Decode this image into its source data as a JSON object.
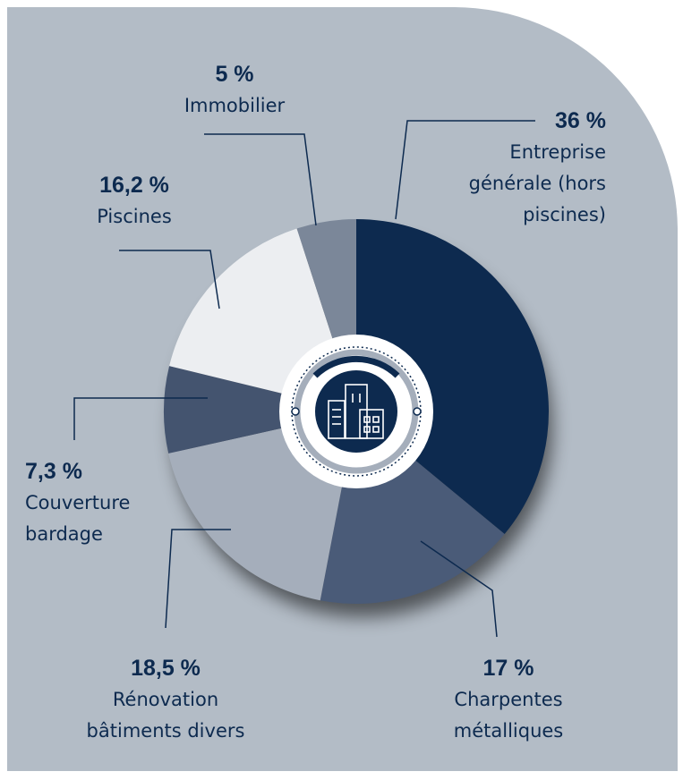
{
  "chart_data": {
    "type": "pie",
    "categories": [
      "Entreprise générale (hors piscines)",
      "Charpentes métalliques",
      "Rénovation bâtiments divers",
      "Couverture bardage",
      "Piscines",
      "Immobilier"
    ],
    "values": [
      36,
      17,
      18.5,
      7.3,
      16.2,
      5
    ],
    "value_labels": [
      "36 %",
      "17 %",
      "18,5 %",
      "7,3 %",
      "16,2 %",
      "5 %"
    ],
    "colors": [
      "#0d2a4f",
      "#4a5b78",
      "#a5aebb",
      "#44546f",
      "#eceef1",
      "#7b8799"
    ]
  }
}
